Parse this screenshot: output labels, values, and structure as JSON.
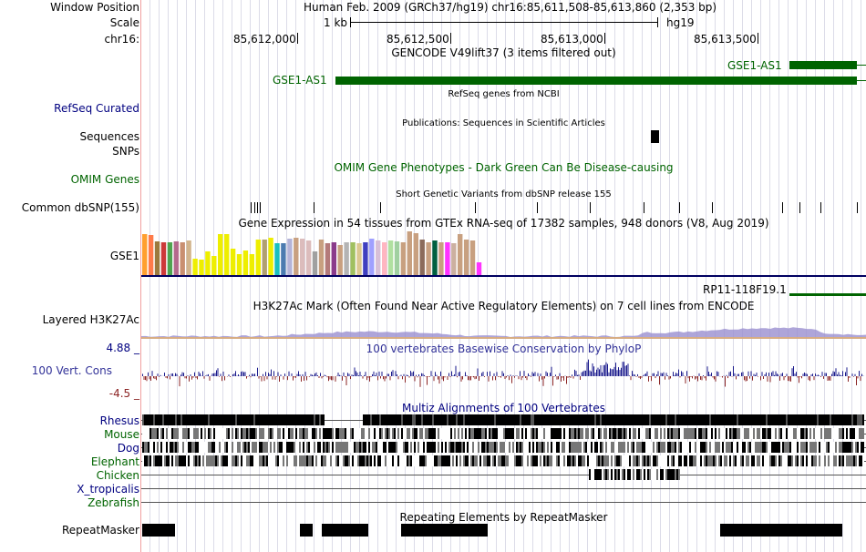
{
  "header": {
    "window_position_label": "Window Position",
    "window_position_value": "Human Feb. 2009 (GRCh37/hg19)   chr16:85,611,508-85,613,860 (2,353 bp)",
    "scale_label": "Scale",
    "scale_value": "1 kb",
    "scale_assembly": "hg19",
    "chrom_label": "chr16:",
    "ticks": [
      "85,612,000",
      "85,612,500",
      "85,613,000",
      "85,613,500"
    ]
  },
  "tracks": {
    "gencode": {
      "title": "GENCODE V49lift37 (3 items filtered out)",
      "genes": [
        "GSE1-AS1",
        "GSE1-AS1"
      ]
    },
    "refseq": {
      "label": "RefSeq Curated",
      "title": "RefSeq genes from NCBI"
    },
    "publications": {
      "title": "Publications: Sequences in Scientific Articles"
    },
    "sequences": {
      "label": "Sequences"
    },
    "snps": {
      "label": "SNPs"
    },
    "omim": {
      "label": "OMIM Genes",
      "title": "OMIM Gene Phenotypes - Dark Green Can Be Disease-causing"
    },
    "dbsnp": {
      "label": "Common dbSNP(155)",
      "title": "Short Genetic Variants from dbSNP release 155"
    },
    "gtex": {
      "title": "Gene Expression in 54 tissues from GTEx RNA-seq of 17382 samples, 948 donors (V8, Aug 2019)",
      "label": "GSE1",
      "tissue_levels": [
        0.93,
        0.91,
        0.78,
        0.74,
        0.75,
        0.78,
        0.75,
        0.79,
        0.38,
        0.35,
        0.55,
        0.43,
        0.93,
        0.93,
        0.6,
        0.47,
        0.57,
        0.48,
        0.82,
        0.82,
        0.85,
        0.73,
        0.73,
        0.84,
        0.86,
        0.84,
        0.79,
        0.54,
        0.82,
        0.72,
        0.75,
        0.68,
        0.75,
        0.76,
        0.73,
        0.75,
        0.83,
        0.79,
        0.76,
        0.8,
        0.78,
        0.74,
        0.99,
        0.96,
        0.81,
        0.75,
        0.8,
        0.76,
        0.75,
        0.73,
        0.93,
        0.81,
        0.8,
        0.3
      ],
      "tissue_colors": [
        "#ff9f2f",
        "#ff7b4a",
        "#9b7a3e",
        "#cc3a39",
        "#4ea44f",
        "#b46a8c",
        "#c98f70",
        "#d2b48c",
        "#eeee00",
        "#eeee00",
        "#eeee00",
        "#eeee00",
        "#eeee00",
        "#eeee00",
        "#eeee00",
        "#eeee00",
        "#eeee00",
        "#eeee00",
        "#eeee00",
        "#b0a070",
        "#eeee00",
        "#1bbfbf",
        "#4b7bb0",
        "#b4b4d8",
        "#c8a080",
        "#dcbcbc",
        "#dcbcbc",
        "#a0a0a0",
        "#c8a080",
        "#b47a7a",
        "#8b3b8b",
        "#c8a080",
        "#b4b4b4",
        "#a0c060",
        "#dcc890",
        "#4040c0",
        "#a0a0ff",
        "#d8bfd8",
        "#ffb6c1",
        "#b0e0a0",
        "#a0d0a0",
        "#c8a080",
        "#c8a080",
        "#c8a080",
        "#8b6b5b",
        "#c8a080",
        "#006040",
        "#c8a080",
        "#ff33ff",
        "#ccb0a0",
        "#c8a080",
        "#c8a080",
        "#c8a080",
        "#ff33ff"
      ]
    },
    "rp11": {
      "name": "RP11-118F19.1"
    },
    "h3k27ac": {
      "label": "Layered H3K27Ac",
      "title": "H3K27Ac Mark (Often Found Near Active Regulatory Elements) on 7 cell lines from ENCODE"
    },
    "conservation": {
      "label": "100 Vert. Cons",
      "title": "100 vertebrates Basewise Conservation by PhyloP",
      "max": "4.88 _",
      "min": "-4.5 _"
    },
    "multiz": {
      "title": "Multiz Alignments of 100 Vertebrates",
      "species": [
        "Rhesus",
        "Mouse",
        "Dog",
        "Elephant",
        "Chicken",
        "X_tropicalis",
        "Zebrafish"
      ]
    },
    "repeatmasker": {
      "label": "RepeatMasker",
      "title": "Repeating Elements by RepeatMasker"
    }
  },
  "colors": {
    "label_blue": "#000080",
    "label_green": "#006400",
    "gene_green": "#006400",
    "cons_positive": "#1a1a8c",
    "cons_negative": "#8b2323",
    "left_border": "#f0a0a0",
    "grid": "#dcdce8"
  }
}
